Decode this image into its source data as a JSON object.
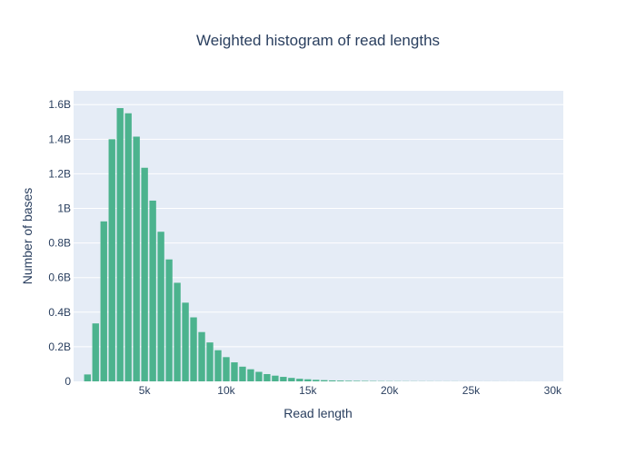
{
  "chart_data": {
    "type": "bar",
    "title": "Weighted histogram of read lengths",
    "xlabel": "Read length",
    "ylabel": "Number of bases",
    "xlim": [
      650,
      30650
    ],
    "ylim": [
      0,
      1.68
    ],
    "x_ticks": [
      {
        "value": 5000,
        "label": "5k"
      },
      {
        "value": 10000,
        "label": "10k"
      },
      {
        "value": 15000,
        "label": "15k"
      },
      {
        "value": 20000,
        "label": "20k"
      },
      {
        "value": 25000,
        "label": "25k"
      },
      {
        "value": 30000,
        "label": "30k"
      }
    ],
    "y_ticks": [
      {
        "value": 0,
        "label": "0"
      },
      {
        "value": 0.2,
        "label": "0.2B"
      },
      {
        "value": 0.4,
        "label": "0.4B"
      },
      {
        "value": 0.6,
        "label": "0.6B"
      },
      {
        "value": 0.8,
        "label": "0.8B"
      },
      {
        "value": 1.0,
        "label": "1B"
      },
      {
        "value": 1.2,
        "label": "1.2B"
      },
      {
        "value": 1.4,
        "label": "1.4B"
      },
      {
        "value": 1.6,
        "label": "1.6B"
      }
    ],
    "bin_width": 500,
    "x": [
      1500,
      2000,
      2500,
      3000,
      3500,
      4000,
      4500,
      5000,
      5500,
      6000,
      6500,
      7000,
      7500,
      8000,
      8500,
      9000,
      9500,
      10000,
      10500,
      11000,
      11500,
      12000,
      12500,
      13000,
      13500,
      14000,
      14500,
      15000,
      15500,
      16000,
      16500,
      17000,
      17500,
      18000,
      18500,
      19000,
      19500,
      20000,
      20500,
      21000,
      21500,
      22000,
      22500,
      23000,
      23500,
      24000,
      24500,
      25000,
      25500,
      26000,
      26500,
      27000,
      27500,
      28000,
      28500,
      29000,
      29500,
      30000
    ],
    "values": [
      0.04,
      0.335,
      0.925,
      1.4,
      1.58,
      1.55,
      1.415,
      1.235,
      1.045,
      0.865,
      0.705,
      0.57,
      0.455,
      0.37,
      0.285,
      0.225,
      0.18,
      0.14,
      0.11,
      0.085,
      0.07,
      0.055,
      0.042,
      0.033,
      0.026,
      0.02,
      0.015,
      0.012,
      0.009,
      0.007,
      0.0055,
      0.0045,
      0.0035,
      0.003,
      0.0025,
      0.002,
      0.0017,
      0.0014,
      0.0012,
      0.001,
      0.0009,
      0.0008,
      0.0007,
      0.0006,
      0.0005,
      0.0005,
      0.0004,
      0.0004,
      0.0003,
      0.0003,
      0.0003,
      0.0002,
      0.0002,
      0.0002,
      0.0002,
      0.0001,
      0.0001,
      0.0001
    ],
    "grid": true,
    "bar_color": "#4cb38e",
    "plot_bg": "#e5ecf6",
    "grid_color": "#ffffff",
    "text_color": "#2a3f5f"
  }
}
